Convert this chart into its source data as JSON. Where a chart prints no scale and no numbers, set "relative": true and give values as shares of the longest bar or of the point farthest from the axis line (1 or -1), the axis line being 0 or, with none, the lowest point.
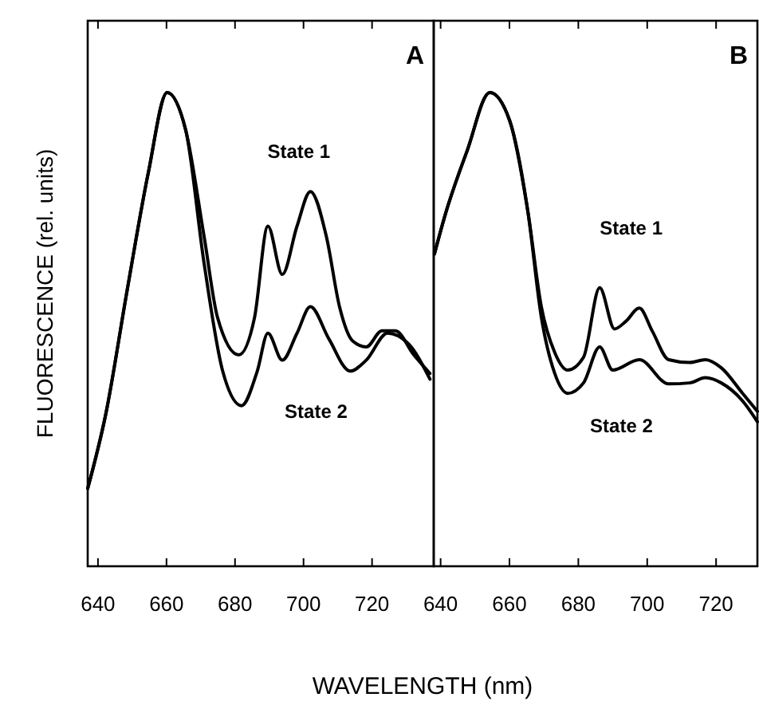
{
  "chart_data": [
    {
      "type": "line",
      "relative": true,
      "xlabel": "WAVELENGTH (nm)",
      "ylabel": "FLUORESCENCE (rel. units)",
      "xlim": [
        637,
        738
      ],
      "xticks": [
        640,
        660,
        680,
        700,
        720
      ],
      "line_style": "solid",
      "annotations": [
        "A",
        "State 1",
        "State 2"
      ],
      "series": [
        {
          "color": "#000000",
          "x": [
            637,
            642.3,
            648.5,
            654.7,
            660.2,
            665.6,
            671,
            674.9,
            681.1,
            685.7,
            689.6,
            693.8,
            698.1,
            702,
            706.7,
            710.5,
            714.4,
            718.3,
            722.9,
            726.8,
            732.2,
            736.9
          ],
          "values": [
            0.164,
            0.322,
            0.582,
            0.831,
            1,
            0.921,
            0.695,
            0.525,
            0.446,
            0.525,
            0.718,
            0.616,
            0.718,
            0.791,
            0.695,
            0.548,
            0.475,
            0.463,
            0.497,
            0.497,
            0.446,
            0.407
          ]
        },
        {
          "color": "#000000",
          "x": [
            637,
            642.3,
            648.5,
            654.7,
            660.2,
            665.6,
            671,
            676.4,
            681.9,
            686.5,
            689.6,
            693.8,
            698.1,
            702,
            707.4,
            713.6,
            718.3,
            724.5,
            730.7,
            736.9
          ],
          "values": [
            0.164,
            0.322,
            0.582,
            0.831,
            1,
            0.921,
            0.638,
            0.412,
            0.339,
            0.412,
            0.492,
            0.435,
            0.492,
            0.548,
            0.48,
            0.412,
            0.435,
            0.492,
            0.469,
            0.395
          ]
        }
      ]
    },
    {
      "type": "line",
      "relative": true,
      "xlim": [
        638,
        732
      ],
      "xticks": [
        640,
        660,
        680,
        700,
        720
      ],
      "line_style": "solid",
      "annotations": [
        "B",
        "State 1",
        "State 2"
      ],
      "series": [
        {
          "color": "#000000",
          "x": [
            638.2,
            641.5,
            647.7,
            654.3,
            660,
            665.4,
            669.2,
            673.1,
            676.9,
            681.5,
            686.2,
            690.5,
            693.8,
            697.7,
            701.5,
            706.2,
            712.3,
            716.9,
            721.5,
            727.7,
            732
          ],
          "values": [
            0.659,
            0.746,
            0.877,
            1,
            0.942,
            0.746,
            0.55,
            0.452,
            0.414,
            0.441,
            0.588,
            0.501,
            0.517,
            0.545,
            0.496,
            0.436,
            0.43,
            0.436,
            0.419,
            0.365,
            0.327
          ]
        },
        {
          "color": "#000000",
          "x": [
            638.2,
            641.5,
            647.7,
            654.3,
            660,
            665.4,
            669.2,
            673.1,
            676.9,
            681.5,
            686.2,
            690,
            697.7,
            706.2,
            712.3,
            716.9,
            721.5,
            727.7,
            732
          ],
          "values": [
            0.659,
            0.746,
            0.877,
            1,
            0.942,
            0.746,
            0.528,
            0.408,
            0.365,
            0.387,
            0.463,
            0.414,
            0.436,
            0.385,
            0.387,
            0.398,
            0.387,
            0.349,
            0.305
          ]
        }
      ]
    }
  ]
}
